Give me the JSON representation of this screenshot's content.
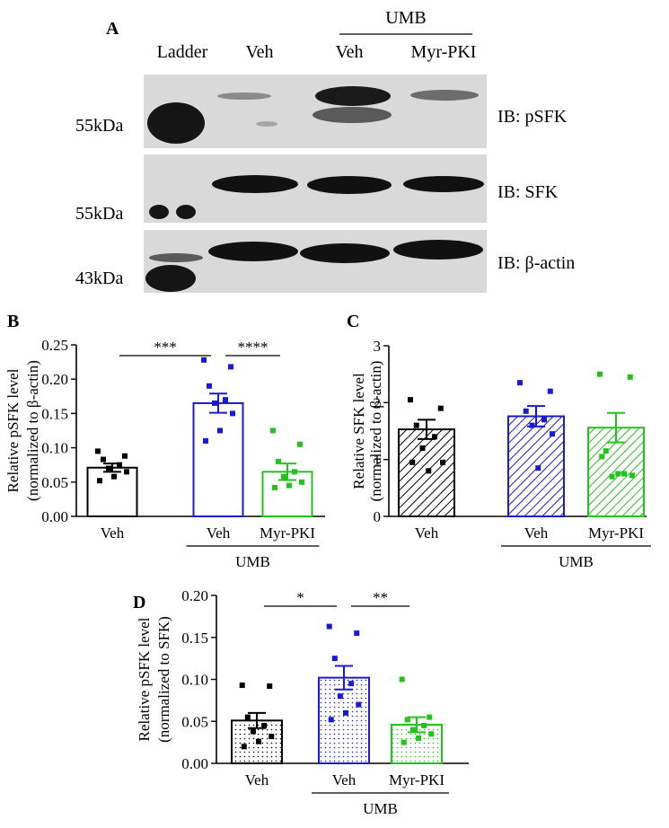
{
  "panels": {
    "A": "A",
    "B": "B",
    "C": "C",
    "D": "D"
  },
  "blot": {
    "group_label": "UMB",
    "lanes": [
      "Ladder",
      "Veh",
      "Veh",
      "Myr-PKI"
    ],
    "markers": [
      "55kDa",
      "55kDa",
      "43kDa"
    ],
    "antibodies": [
      "IB: pSFK",
      "IB: SFK",
      "IB: β-actin"
    ]
  },
  "colors": {
    "veh": "#000000",
    "umb_veh": "#1a1ad6",
    "umb_myr": "#22c41c"
  },
  "chart_data": [
    {
      "panel": "B",
      "type": "bar",
      "ylabel": "Relative pSFK level",
      "ylabel2": "(normalized to β-actin)",
      "ylim": [
        0,
        0.25
      ],
      "yticks": [
        "0.00",
        "0.05",
        "0.10",
        "0.15",
        "0.20",
        "0.25"
      ],
      "categories": [
        "Veh",
        "Veh",
        "Myr-PKI"
      ],
      "group_label": "UMB",
      "fill": "plain",
      "values": [
        0.071,
        0.165,
        0.065
      ],
      "errors": [
        0.006,
        0.014,
        0.012
      ],
      "points": [
        [
          0.095,
          0.088,
          0.083,
          0.075,
          0.07,
          0.065,
          0.058,
          0.052
        ],
        [
          0.228,
          0.218,
          0.19,
          0.17,
          0.165,
          0.15,
          0.125,
          0.11
        ],
        [
          0.125,
          0.105,
          0.08,
          0.065,
          0.058,
          0.05,
          0.045,
          0.042
        ]
      ],
      "significance": [
        {
          "from": 0,
          "to": 1,
          "label": "***"
        },
        {
          "from": 1,
          "to": 2,
          "label": "****"
        }
      ]
    },
    {
      "panel": "C",
      "type": "bar",
      "ylabel": "Relative SFK level",
      "ylabel2": "(normalized to β-actin)",
      "ylim": [
        0,
        3
      ],
      "yticks": [
        "0",
        "1",
        "2",
        "3"
      ],
      "categories": [
        "Veh",
        "Veh",
        "Myr-PKI"
      ],
      "group_label": "UMB",
      "fill": "hatch",
      "values": [
        1.53,
        1.76,
        1.56
      ],
      "errors": [
        0.17,
        0.18,
        0.26
      ],
      "points": [
        [
          2.05,
          1.9,
          1.6,
          1.4,
          1.2,
          0.95,
          0.8,
          0.95
        ],
        [
          2.35,
          2.2,
          1.85,
          1.7,
          1.6,
          1.45,
          0.85
        ],
        [
          2.5,
          2.45,
          1.15,
          0.75,
          0.7,
          0.72,
          0.75,
          1.05
        ]
      ],
      "significance": []
    },
    {
      "panel": "D",
      "type": "bar",
      "ylabel": "Relative pSFK level",
      "ylabel2": "(normalized to SFK)",
      "ylim": [
        0,
        0.2
      ],
      "yticks": [
        "0.00",
        "0.05",
        "0.10",
        "0.15",
        "0.20"
      ],
      "categories": [
        "Veh",
        "Veh",
        "Myr-PKI"
      ],
      "group_label": "UMB",
      "fill": "dots",
      "values": [
        0.051,
        0.102,
        0.046
      ],
      "errors": [
        0.009,
        0.014,
        0.009
      ],
      "points": [
        [
          0.093,
          0.092,
          0.055,
          0.045,
          0.038,
          0.032,
          0.026,
          0.02
        ],
        [
          0.163,
          0.155,
          0.125,
          0.095,
          0.08,
          0.07,
          0.06,
          0.052
        ],
        [
          0.1,
          0.055,
          0.052,
          0.045,
          0.04,
          0.035,
          0.03,
          0.025
        ]
      ],
      "significance": [
        {
          "from": 0,
          "to": 1,
          "label": "*"
        },
        {
          "from": 1,
          "to": 2,
          "label": "**"
        }
      ]
    }
  ]
}
